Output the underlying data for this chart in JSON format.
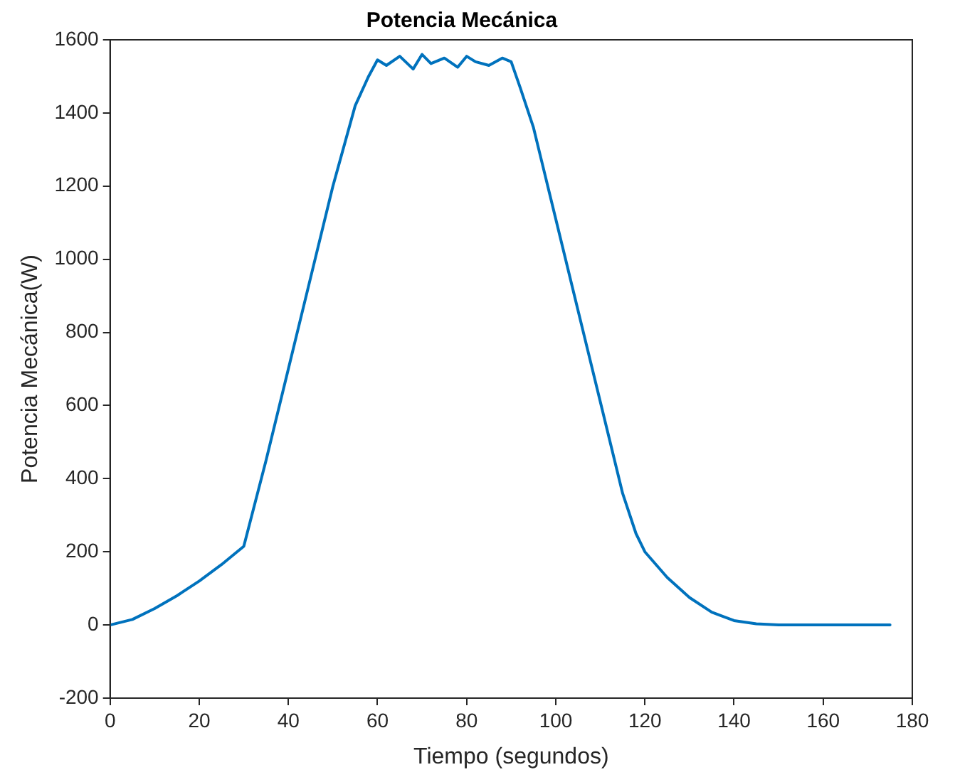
{
  "chart_data": {
    "type": "line",
    "title": "Potencia Mecánica",
    "xlabel": "Tiempo (segundos)",
    "ylabel": "Potencia Mecánica(W)",
    "x": [
      0,
      5,
      10,
      15,
      20,
      25,
      28,
      30,
      35,
      40,
      45,
      50,
      55,
      58,
      60,
      62,
      65,
      68,
      70,
      72,
      75,
      78,
      80,
      82,
      85,
      88,
      90,
      92,
      95,
      100,
      105,
      110,
      115,
      118,
      120,
      125,
      130,
      135,
      140,
      145,
      150,
      155,
      160,
      170,
      175
    ],
    "series": [
      {
        "color": "#0072bd",
        "values": [
          0,
          15,
          45,
          80,
          120,
          165,
          195,
          215,
          450,
          700,
          950,
          1200,
          1420,
          1500,
          1545,
          1530,
          1555,
          1520,
          1560,
          1535,
          1550,
          1525,
          1555,
          1540,
          1530,
          1550,
          1540,
          1470,
          1360,
          1110,
          860,
          610,
          360,
          250,
          200,
          130,
          75,
          35,
          12,
          3,
          0,
          0,
          0,
          0,
          0
        ]
      }
    ],
    "xlim": [
      0,
      180
    ],
    "xticks": [
      0,
      20,
      40,
      60,
      80,
      100,
      120,
      140,
      160,
      180
    ],
    "ylim": [
      -200,
      1600
    ],
    "yticks": [
      -200,
      0,
      200,
      400,
      600,
      800,
      1000,
      1200,
      1400,
      1600
    ],
    "grid": false,
    "legend": false,
    "marker": "none",
    "line_style": "solid"
  }
}
